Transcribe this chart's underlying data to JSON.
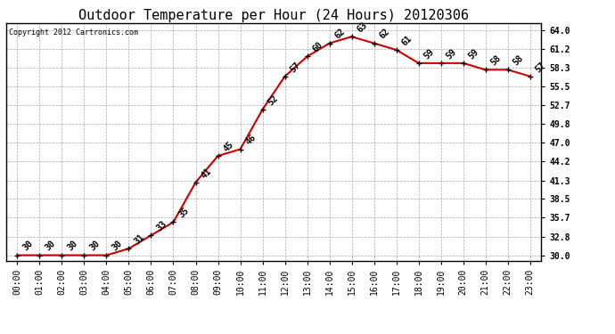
{
  "title": "Outdoor Temperature per Hour (24 Hours) 20120306",
  "copyright": "Copyright 2012 Cartronics.com",
  "hours": [
    0,
    1,
    2,
    3,
    4,
    5,
    6,
    7,
    8,
    9,
    10,
    11,
    12,
    13,
    14,
    15,
    16,
    17,
    18,
    19,
    20,
    21,
    22,
    23
  ],
  "temps": [
    30,
    30,
    30,
    30,
    30,
    31,
    33,
    35,
    41,
    45,
    46,
    52,
    57,
    60,
    62,
    63,
    62,
    61,
    59,
    59,
    59,
    58,
    58,
    57
  ],
  "hour_labels": [
    "00:00",
    "01:00",
    "02:00",
    "03:00",
    "04:00",
    "05:00",
    "06:00",
    "07:00",
    "08:00",
    "09:00",
    "10:00",
    "11:00",
    "12:00",
    "13:00",
    "14:00",
    "15:00",
    "16:00",
    "17:00",
    "18:00",
    "19:00",
    "20:00",
    "21:00",
    "22:00",
    "23:00"
  ],
  "yticks": [
    30.0,
    32.8,
    35.7,
    38.5,
    41.3,
    44.2,
    47.0,
    49.8,
    52.7,
    55.5,
    58.3,
    61.2,
    64.0
  ],
  "ylim": [
    29.2,
    65.0
  ],
  "xlim": [
    -0.5,
    23.5
  ],
  "line_color": "#cc0000",
  "bg_color": "#ffffff",
  "grid_color": "#aaaaaa",
  "title_fontsize": 11,
  "tick_fontsize": 7,
  "annot_fontsize": 7,
  "copyright_fontsize": 6
}
